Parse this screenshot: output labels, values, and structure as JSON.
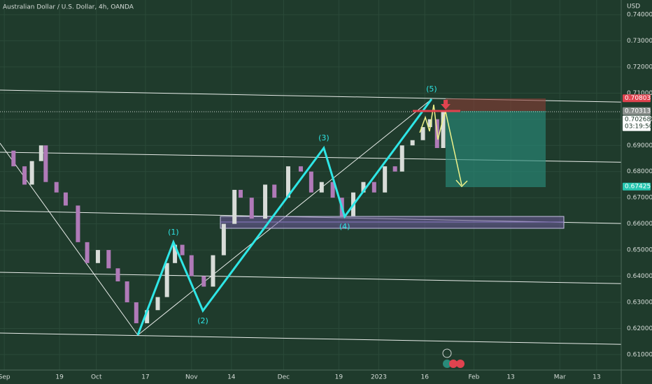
{
  "chart_data": {
    "type": "candlestick",
    "title": "Australian Dollar / U.S. Dollar, 4h, OANDA",
    "currency": "USD",
    "xlim": [
      -1.4,
      201
    ],
    "ylim": [
      0.6041,
      0.7456
    ],
    "xticks": [
      {
        "value": 0,
        "label": "Sep"
      },
      {
        "value": 18,
        "label": "19"
      },
      {
        "value": 30,
        "label": "Oct"
      },
      {
        "value": 46,
        "label": "17"
      },
      {
        "value": 61,
        "label": "Nov"
      },
      {
        "value": 74,
        "label": "14"
      },
      {
        "value": 91,
        "label": "Dec"
      },
      {
        "value": 109,
        "label": "19"
      },
      {
        "value": 122,
        "label": "2023"
      },
      {
        "value": 137,
        "label": "16"
      },
      {
        "value": 153,
        "label": "Feb"
      },
      {
        "value": 165,
        "label": "13"
      },
      {
        "value": 181,
        "label": "Mar"
      },
      {
        "value": 193,
        "label": "13"
      }
    ],
    "yticks": [
      {
        "value": 0.61,
        "label": "0.61000"
      },
      {
        "value": 0.62,
        "label": "0.62000"
      },
      {
        "value": 0.63,
        "label": "0.63000"
      },
      {
        "value": 0.64,
        "label": "0.64000"
      },
      {
        "value": 0.65,
        "label": "0.65000"
      },
      {
        "value": 0.66,
        "label": "0.66000"
      },
      {
        "value": 0.67,
        "label": "0.67000"
      },
      {
        "value": 0.68,
        "label": "0.68000"
      },
      {
        "value": 0.69,
        "label": "0.69000"
      },
      {
        "value": 0.7,
        "label": "0.70000"
      },
      {
        "value": 0.71,
        "label": "0.71000"
      },
      {
        "value": 0.72,
        "label": "0.72000"
      },
      {
        "value": 0.73,
        "label": "0.73000"
      },
      {
        "value": 0.74,
        "label": "0.74000"
      }
    ],
    "grid": true,
    "price": {
      "up_color": "#d8dcd8",
      "down_color": "#b07ab8",
      "x": [
        0,
        3,
        6.6,
        9,
        12,
        13.5,
        17,
        20,
        24,
        27,
        30.5,
        34,
        37,
        40,
        43,
        46.5,
        50,
        53,
        55.6,
        58,
        61,
        65,
        68,
        71.5,
        75,
        77,
        80.6,
        85,
        88,
        92.5,
        96.6,
        100,
        103.4,
        107,
        110,
        113.7,
        117,
        120.5,
        124,
        127.3,
        129.6,
        133,
        136.4,
        138.7,
        141,
        143
      ],
      "values": [
        0.688,
        0.682,
        0.675,
        0.684,
        0.69,
        0.676,
        0.672,
        0.667,
        0.653,
        0.645,
        0.65,
        0.643,
        0.638,
        0.63,
        0.622,
        0.627,
        0.632,
        0.645,
        0.652,
        0.648,
        0.64,
        0.636,
        0.648,
        0.66,
        0.673,
        0.67,
        0.662,
        0.675,
        0.67,
        0.682,
        0.68,
        0.672,
        0.676,
        0.67,
        0.663,
        0.672,
        0.676,
        0.672,
        0.682,
        0.68,
        0.69,
        0.692,
        0.697,
        0.7,
        0.689,
        0.703
      ]
    },
    "wave": {
      "color": "#2ee6e6",
      "x": [
        43.5,
        55.1,
        64.7,
        104.1,
        110.9,
        139.2
      ],
      "values": [
        0.6175,
        0.653,
        0.6268,
        0.689,
        0.6628,
        0.7077
      ],
      "labels": [
        null,
        "(1)",
        "(2)",
        "(3)",
        "(4)",
        "(5)"
      ]
    },
    "price_labels": [
      {
        "value": 0.70803,
        "label": "0.70803",
        "color": "#e0434f"
      },
      {
        "value": 0.70313,
        "label": "0.70313",
        "color": "#8a8f8c"
      },
      {
        "value": 0.70268,
        "label": "0.70268",
        "sub": "03:19:50",
        "color": "#ffffff"
      },
      {
        "value": 0.67425,
        "label": "0.67425",
        "color": "#26c6b0"
      }
    ]
  }
}
